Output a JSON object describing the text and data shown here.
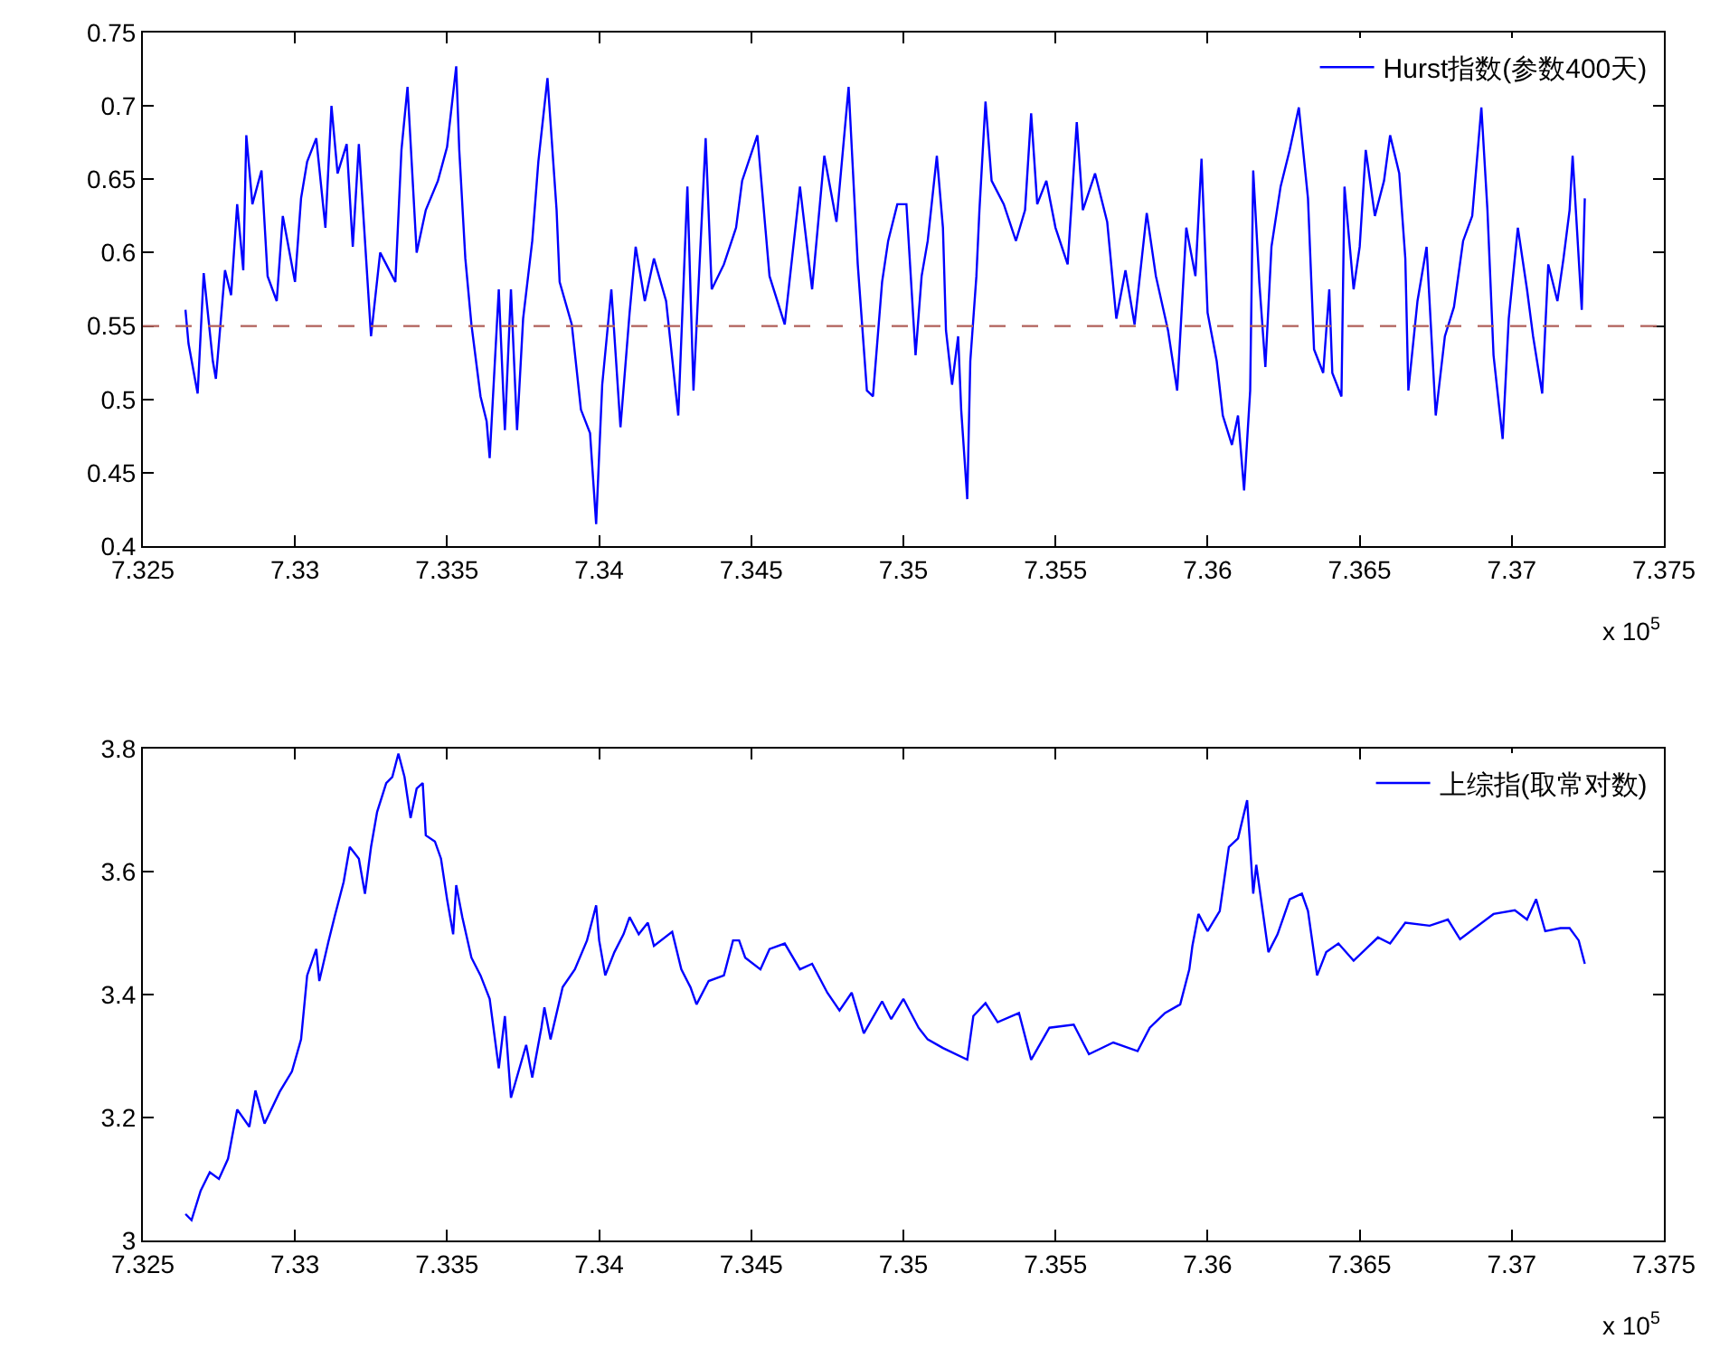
{
  "chart_data": [
    {
      "type": "line",
      "legend": "top right",
      "xlim": [
        7.325,
        7.375
      ],
      "xticks": [
        7.325,
        7.33,
        7.335,
        7.34,
        7.345,
        7.35,
        7.355,
        7.36,
        7.365,
        7.37,
        7.375
      ],
      "ylim": [
        0.4,
        0.75
      ],
      "yticks": [
        0.4,
        0.45,
        0.5,
        0.55,
        0.6,
        0.65,
        0.7,
        0.75
      ],
      "ref_lines": [
        {
          "axis": "y",
          "value": 0.55,
          "color": "#b0605a",
          "line_style": "dashed"
        }
      ],
      "annotations": [
        "x 10$^{5}$"
      ],
      "series": [
        {
          "name": "Hurst指数(参数400天)",
          "color": "#0000ff",
          "x": [
            7.3264,
            7.3265,
            7.3268,
            7.327,
            7.3273,
            7.3274,
            7.3277,
            7.3279,
            7.3281,
            7.3283,
            7.3284,
            7.3286,
            7.3289,
            7.3291,
            7.3294,
            7.3296,
            7.33,
            7.3302,
            7.3304,
            7.3307,
            7.331,
            7.3312,
            7.3314,
            7.3317,
            7.3319,
            7.3321,
            7.3325,
            7.3328,
            7.3333,
            7.3335,
            7.3337,
            7.334,
            7.3343,
            7.3347,
            7.335,
            7.3353,
            7.3354,
            7.3356,
            7.3358,
            7.3361,
            7.3363,
            7.3364,
            7.3367,
            7.3369,
            7.3371,
            7.3373,
            7.3375,
            7.3378,
            7.338,
            7.3383,
            7.3386,
            7.3387,
            7.3391,
            7.3394,
            7.3397,
            7.3399,
            7.3401,
            7.3404,
            7.3407,
            7.341,
            7.3412,
            7.3415,
            7.3418,
            7.3422,
            7.3426,
            7.3429,
            7.3431,
            7.3435,
            7.3437,
            7.3441,
            7.3445,
            7.3447,
            7.3452,
            7.3456,
            7.3461,
            7.3466,
            7.347,
            7.3474,
            7.3478,
            7.3482,
            7.3485,
            7.3488,
            7.349,
            7.3493,
            7.3495,
            7.3498,
            7.3501,
            7.3504,
            7.3506,
            7.3508,
            7.3511,
            7.3513,
            7.3514,
            7.3516,
            7.3518,
            7.3519,
            7.3521,
            7.3522,
            7.3524,
            7.3525,
            7.3527,
            7.3529,
            7.3533,
            7.3537,
            7.354,
            7.3542,
            7.3544,
            7.3547,
            7.355,
            7.3554,
            7.3557,
            7.3559,
            7.3563,
            7.3567,
            7.357,
            7.3573,
            7.3576,
            7.358,
            7.3583,
            7.3587,
            7.359,
            7.3593,
            7.3596,
            7.3598,
            7.36,
            7.3603,
            7.3605,
            7.3608,
            7.361,
            7.3612,
            7.3614,
            7.3615,
            7.3617,
            7.3619,
            7.3621,
            7.3624,
            7.3627,
            7.363,
            7.3633,
            7.3635,
            7.3638,
            7.364,
            7.3641,
            7.3644,
            7.3645,
            7.3648,
            7.365,
            7.3652,
            7.3655,
            7.3658,
            7.366,
            7.3663,
            7.3665,
            7.3666,
            7.3669,
            7.3672,
            7.3675,
            7.3678,
            7.3681,
            7.3684,
            7.3687,
            7.369,
            7.3692,
            7.3694,
            7.3697,
            7.3699,
            7.3702,
            7.3705,
            7.3707,
            7.371,
            7.3712,
            7.3715,
            7.3717,
            7.3719,
            7.372,
            7.3723,
            7.3724
          ],
          "values": [
            0.561,
            0.538,
            0.504,
            0.586,
            0.526,
            0.514,
            0.588,
            0.571,
            0.633,
            0.588,
            0.68,
            0.633,
            0.656,
            0.584,
            0.567,
            0.625,
            0.58,
            0.637,
            0.662,
            0.678,
            0.617,
            0.7,
            0.654,
            0.674,
            0.604,
            0.674,
            0.543,
            0.6,
            0.58,
            0.67,
            0.713,
            0.6,
            0.629,
            0.649,
            0.672,
            0.727,
            0.67,
            0.596,
            0.551,
            0.502,
            0.485,
            0.46,
            0.575,
            0.479,
            0.575,
            0.479,
            0.555,
            0.608,
            0.662,
            0.719,
            0.629,
            0.58,
            0.551,
            0.493,
            0.477,
            0.415,
            0.51,
            0.575,
            0.481,
            0.559,
            0.604,
            0.567,
            0.596,
            0.567,
            0.489,
            0.645,
            0.506,
            0.678,
            0.575,
            0.592,
            0.617,
            0.649,
            0.68,
            0.584,
            0.551,
            0.645,
            0.575,
            0.666,
            0.621,
            0.713,
            0.592,
            0.506,
            0.502,
            0.58,
            0.608,
            0.633,
            0.633,
            0.53,
            0.584,
            0.608,
            0.666,
            0.617,
            0.547,
            0.51,
            0.543,
            0.493,
            0.432,
            0.526,
            0.584,
            0.629,
            0.703,
            0.649,
            0.633,
            0.608,
            0.629,
            0.695,
            0.633,
            0.649,
            0.617,
            0.592,
            0.689,
            0.629,
            0.654,
            0.621,
            0.555,
            0.588,
            0.551,
            0.627,
            0.584,
            0.547,
            0.506,
            0.617,
            0.584,
            0.664,
            0.559,
            0.526,
            0.489,
            0.469,
            0.489,
            0.438,
            0.506,
            0.656,
            0.58,
            0.522,
            0.604,
            0.645,
            0.67,
            0.699,
            0.637,
            0.534,
            0.518,
            0.575,
            0.518,
            0.502,
            0.645,
            0.575,
            0.604,
            0.67,
            0.625,
            0.649,
            0.68,
            0.654,
            0.596,
            0.506,
            0.567,
            0.604,
            0.489,
            0.543,
            0.563,
            0.608,
            0.625,
            0.699,
            0.629,
            0.53,
            0.473,
            0.555,
            0.617,
            0.575,
            0.543,
            0.504,
            0.592,
            0.567,
            0.596,
            0.629,
            0.666,
            0.561,
            0.637
          ]
        }
      ]
    },
    {
      "type": "line",
      "legend": "top right",
      "xlim": [
        7.325,
        7.375
      ],
      "xticks": [
        7.325,
        7.33,
        7.335,
        7.34,
        7.345,
        7.35,
        7.355,
        7.36,
        7.365,
        7.37,
        7.375
      ],
      "ylim": [
        3,
        3.8
      ],
      "yticks": [
        3,
        3.2,
        3.4,
        3.6,
        3.8
      ],
      "annotations": [
        "x 10$^{5}$"
      ],
      "series": [
        {
          "name": "上综指(取常对数)",
          "color": "#0000ff",
          "x": [
            7.3264,
            7.3266,
            7.3269,
            7.3272,
            7.3275,
            7.3278,
            7.3281,
            7.3285,
            7.3287,
            7.329,
            7.3295,
            7.3299,
            7.3302,
            7.3304,
            7.3307,
            7.3308,
            7.3311,
            7.3313,
            7.3316,
            7.3318,
            7.3321,
            7.3323,
            7.3325,
            7.3327,
            7.333,
            7.3332,
            7.3334,
            7.3336,
            7.3338,
            7.334,
            7.3342,
            7.3343,
            7.3346,
            7.3348,
            7.335,
            7.3352,
            7.3353,
            7.3355,
            7.3358,
            7.3361,
            7.3364,
            7.3367,
            7.3369,
            7.3371,
            7.3376,
            7.3378,
            7.3381,
            7.3382,
            7.3384,
            7.3388,
            7.3392,
            7.3396,
            7.3399,
            7.34,
            7.3402,
            7.3405,
            7.3408,
            7.341,
            7.3413,
            7.3416,
            7.3418,
            7.3424,
            7.3427,
            7.343,
            7.3432,
            7.3436,
            7.3441,
            7.3444,
            7.3446,
            7.3448,
            7.3453,
            7.3456,
            7.3461,
            7.3466,
            7.347,
            7.3475,
            7.3479,
            7.3483,
            7.3487,
            7.3493,
            7.3496,
            7.35,
            7.3505,
            7.3508,
            7.3513,
            7.3521,
            7.3523,
            7.3527,
            7.3531,
            7.3538,
            7.3542,
            7.3548,
            7.3556,
            7.3561,
            7.3569,
            7.3577,
            7.3581,
            7.3586,
            7.3591,
            7.3594,
            7.3595,
            7.3597,
            7.36,
            7.3604,
            7.3607,
            7.361,
            7.3613,
            7.3615,
            7.3616,
            7.362,
            7.3623,
            7.3627,
            7.3631,
            7.3633,
            7.3636,
            7.3639,
            7.3643,
            7.3648,
            7.3656,
            7.366,
            7.3665,
            7.3673,
            7.3679,
            7.3683,
            7.3694,
            7.3701,
            7.3705,
            7.3708,
            7.3711,
            7.3716,
            7.3719,
            7.3722,
            7.3724
          ],
          "values": [
            3.043,
            3.033,
            3.081,
            3.111,
            3.1,
            3.133,
            3.213,
            3.185,
            3.244,
            3.19,
            3.242,
            3.275,
            3.327,
            3.431,
            3.474,
            3.422,
            3.486,
            3.526,
            3.583,
            3.64,
            3.621,
            3.564,
            3.64,
            3.697,
            3.744,
            3.754,
            3.792,
            3.754,
            3.687,
            3.735,
            3.744,
            3.659,
            3.649,
            3.621,
            3.555,
            3.498,
            3.578,
            3.526,
            3.46,
            3.431,
            3.393,
            3.28,
            3.365,
            3.232,
            3.318,
            3.265,
            3.346,
            3.379,
            3.327,
            3.412,
            3.441,
            3.488,
            3.545,
            3.488,
            3.431,
            3.469,
            3.498,
            3.526,
            3.498,
            3.517,
            3.479,
            3.502,
            3.441,
            3.412,
            3.384,
            3.422,
            3.431,
            3.488,
            3.488,
            3.46,
            3.441,
            3.474,
            3.483,
            3.441,
            3.45,
            3.403,
            3.374,
            3.403,
            3.337,
            3.389,
            3.36,
            3.393,
            3.346,
            3.327,
            3.313,
            3.294,
            3.365,
            3.386,
            3.355,
            3.37,
            3.294,
            3.346,
            3.351,
            3.303,
            3.322,
            3.308,
            3.346,
            3.37,
            3.384,
            3.441,
            3.479,
            3.531,
            3.503,
            3.536,
            3.64,
            3.654,
            3.716,
            3.564,
            3.611,
            3.469,
            3.498,
            3.555,
            3.564,
            3.536,
            3.431,
            3.469,
            3.483,
            3.455,
            3.493,
            3.483,
            3.517,
            3.512,
            3.522,
            3.49,
            3.531,
            3.537,
            3.522,
            3.555,
            3.503,
            3.508,
            3.508,
            3.488,
            3.45
          ]
        }
      ]
    }
  ]
}
